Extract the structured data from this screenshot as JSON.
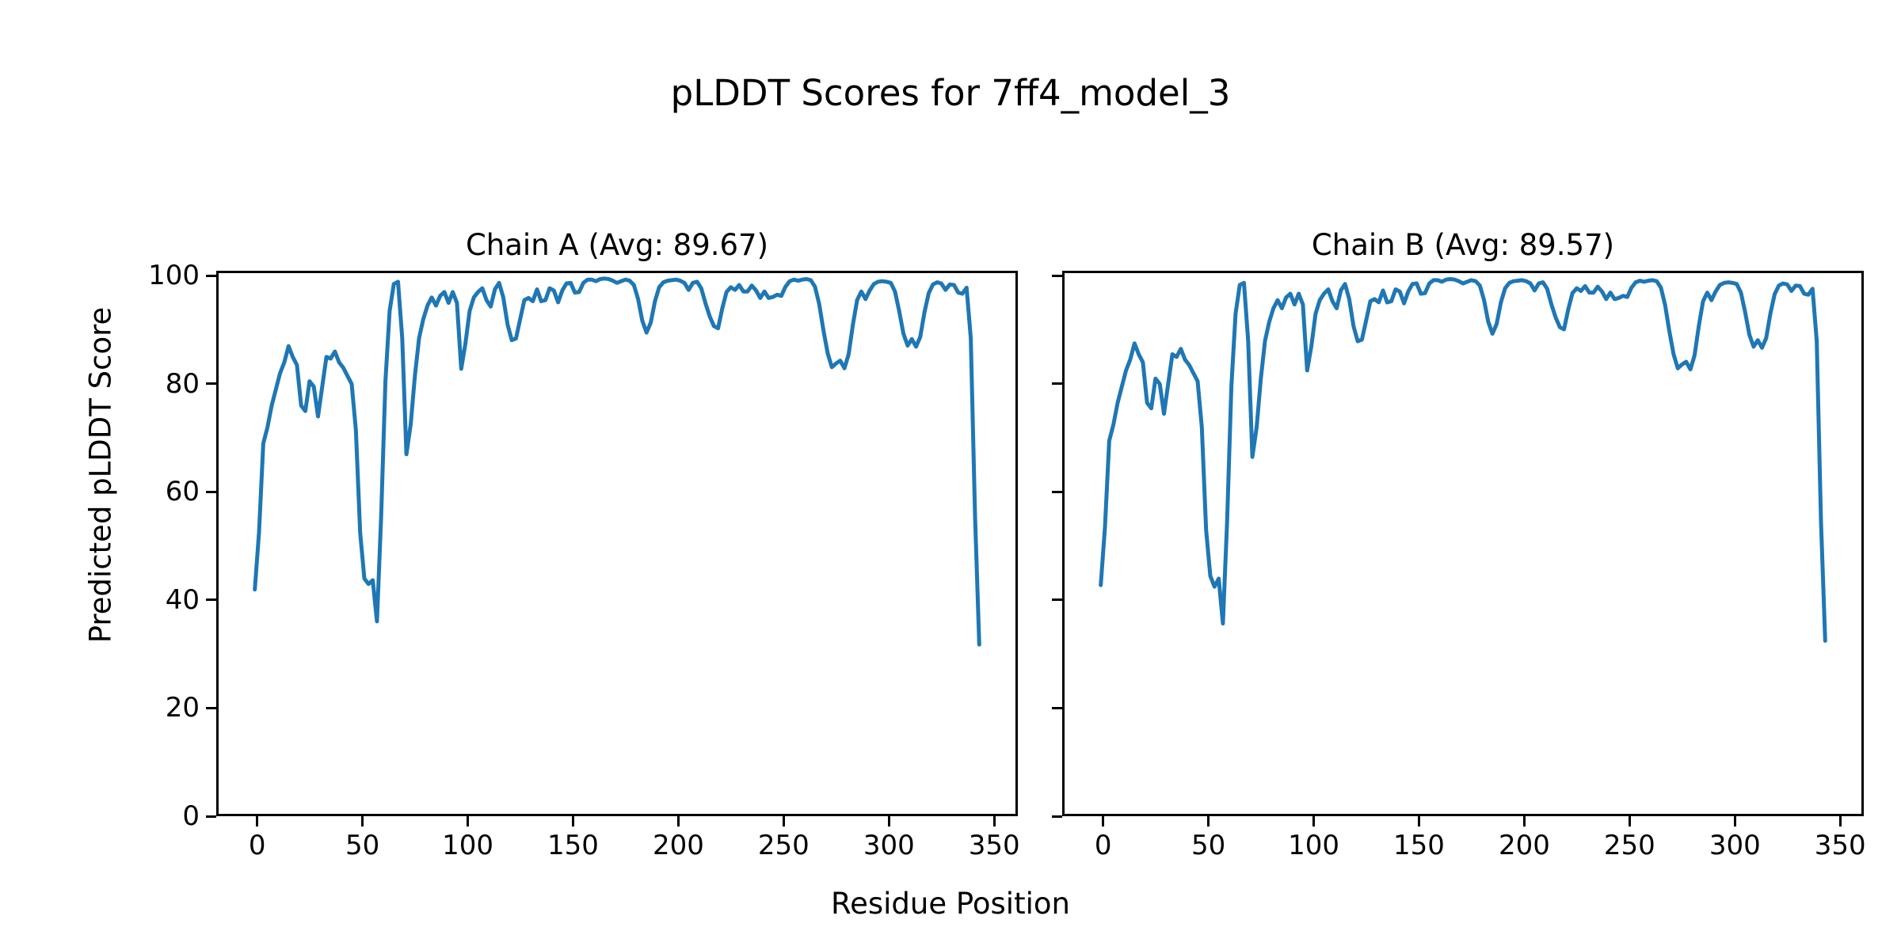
{
  "figure": {
    "suptitle": "pLDDT Scores for 7ff4_model_3",
    "background": "#ffffff",
    "text_color": "#000000",
    "spine_color": "#000000"
  },
  "chart_data": {
    "type": "line",
    "title": "pLDDT Scores for 7ff4_model_3",
    "xlabel": "Residue Position",
    "ylabel": "Predicted pLDDT Score",
    "legend_position": "none",
    "grid": false,
    "line_color": "#1f77b4",
    "x_start": 0,
    "x_step": 2,
    "xlim": [
      -17.2,
      361.2
    ],
    "ylim": [
      0,
      100
    ],
    "x_ticks": [
      0,
      50,
      100,
      150,
      200,
      250,
      300,
      350
    ],
    "y_ticks": [
      0,
      20,
      40,
      60,
      80,
      100
    ],
    "series": [
      {
        "name": "Chain A",
        "title": "Chain A (Avg: 89.67)",
        "avg": 89.67,
        "values": [
          41.5,
          52,
          68.5,
          71.5,
          75.5,
          78.5,
          81.5,
          83.5,
          86.5,
          84.5,
          83,
          75.5,
          74.5,
          80,
          79,
          73.5,
          79,
          84.5,
          84.2,
          85.5,
          83.5,
          82.5,
          81,
          79.5,
          71,
          52,
          43.5,
          42.5,
          43.2,
          35.6,
          55,
          80,
          93,
          98,
          98.4,
          88,
          66.5,
          72,
          81,
          88,
          91.5,
          94,
          95.5,
          94,
          95.8,
          96.5,
          94.5,
          96.5,
          94.5,
          82.3,
          87,
          93,
          95.5,
          96.5,
          97.2,
          95,
          93.8,
          97,
          98.2,
          95.5,
          90.5,
          87.6,
          87.9,
          91.5,
          95,
          95.4,
          94.8,
          97,
          94.8,
          95,
          97.2,
          96.8,
          94.6,
          96.8,
          98.1,
          98.2,
          96.4,
          96.5,
          98.2,
          98.8,
          98.8,
          98.5,
          98.9,
          99,
          98.9,
          98.6,
          98.2,
          98.5,
          98.8,
          98.6,
          97.8,
          95.2,
          91.2,
          89,
          90.8,
          94.8,
          97.4,
          98.3,
          98.6,
          98.7,
          98.8,
          98.6,
          98.2,
          96.9,
          98.2,
          98.4,
          97.2,
          94.4,
          92,
          90.2,
          89.8,
          93.5,
          96.5,
          97.4,
          96.9,
          97.8,
          96.6,
          96.6,
          97.7,
          96.8,
          95.4,
          96.6,
          95.4,
          95.6,
          96,
          95.8,
          97.5,
          98.5,
          98.8,
          98.6,
          98.8,
          98.9,
          98.7,
          97.5,
          94.3,
          89.5,
          85.2,
          82.6,
          83.3,
          83.8,
          82.4,
          85,
          90.5,
          95,
          96.6,
          95.2,
          96.8,
          98,
          98.4,
          98.5,
          98.4,
          98.2,
          96.6,
          93,
          88.8,
          86.6,
          87.8,
          86.4,
          88.2,
          92.8,
          96.3,
          97.9,
          98.3,
          98.1,
          96.9,
          97.9,
          97.8,
          96.4,
          96.2,
          97.3,
          88,
          55,
          31.3
        ]
      },
      {
        "name": "Chain B",
        "title": "Chain B (Avg: 89.57)",
        "avg": 89.57,
        "values": [
          42.3,
          53,
          69,
          72,
          76,
          79,
          82,
          84,
          87,
          85,
          83.5,
          76,
          75,
          80.5,
          79.5,
          74,
          79.5,
          85,
          84.5,
          86,
          84,
          83,
          81.5,
          80,
          71.5,
          52.5,
          44,
          42,
          43.5,
          35.2,
          54,
          79,
          92.5,
          97.8,
          98.2,
          87.5,
          66,
          71.5,
          80.5,
          87.5,
          91,
          93.5,
          95,
          93.5,
          95.5,
          96.2,
          94.2,
          96.2,
          94.2,
          82,
          86.5,
          92.5,
          95,
          96.2,
          97,
          94.8,
          93.5,
          96.8,
          98,
          95.2,
          90.2,
          87.4,
          87.7,
          91.2,
          94.8,
          95.2,
          94.6,
          96.8,
          94.6,
          94.8,
          97,
          96.6,
          94.4,
          96.6,
          98,
          98.1,
          96.2,
          96.3,
          98.1,
          98.7,
          98.7,
          98.4,
          98.8,
          98.9,
          98.8,
          98.5,
          98.1,
          98.4,
          98.7,
          98.5,
          97.7,
          95,
          91,
          88.8,
          90.6,
          94.6,
          97.2,
          98.2,
          98.5,
          98.6,
          98.7,
          98.5,
          98.1,
          96.8,
          98.1,
          98.3,
          97.1,
          94.2,
          91.8,
          90,
          89.6,
          93.3,
          96.3,
          97.2,
          96.7,
          97.6,
          96.4,
          96.4,
          97.5,
          96.6,
          95.2,
          96.4,
          95.2,
          95.4,
          95.8,
          95.6,
          97.3,
          98.3,
          98.6,
          98.4,
          98.6,
          98.7,
          98.5,
          97.3,
          94.1,
          89.3,
          85,
          82.4,
          83.1,
          83.6,
          82.2,
          84.8,
          90.3,
          94.8,
          96.4,
          95,
          96.6,
          97.8,
          98.2,
          98.3,
          98.2,
          98,
          96.4,
          92.8,
          88.6,
          86.4,
          87.6,
          86.2,
          88,
          92.6,
          96.1,
          97.7,
          98.1,
          97.9,
          96.7,
          97.7,
          97.6,
          96.2,
          96,
          97.1,
          87.5,
          54,
          32
        ]
      }
    ]
  }
}
